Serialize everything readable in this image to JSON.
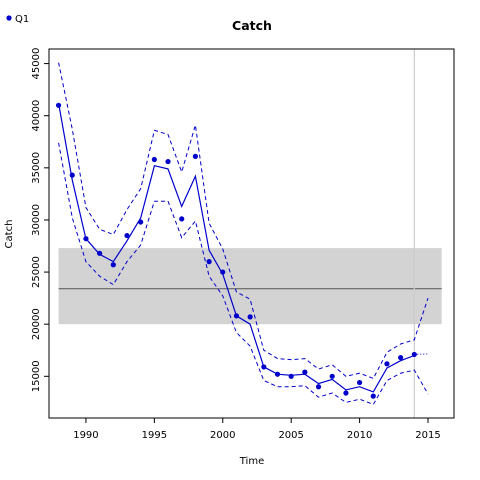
{
  "chart_data": {
    "type": "line",
    "title": "Catch",
    "xlabel": "Time",
    "ylabel": "Catch",
    "xlim": [
      1987.3,
      2016.9
    ],
    "ylim": [
      11000,
      46400
    ],
    "x_ticks": [
      1990,
      1995,
      2000,
      2005,
      2010,
      2015
    ],
    "y_ticks": [
      15000,
      20000,
      25000,
      30000,
      35000,
      40000,
      45000
    ],
    "legend": {
      "placement": "top-left",
      "label": "Q1",
      "color": "#0000cc"
    },
    "grid": false,
    "band": {
      "x": [
        1988,
        2016
      ],
      "lower": 20000,
      "upper": 27300,
      "mean": 23400,
      "color": "#d3d3d3",
      "line_color": "#555555"
    },
    "vline": {
      "x": 2014,
      "color": "#cccccc"
    },
    "observed": {
      "name": "Q1",
      "color": "#0000cc",
      "x": [
        1988,
        1989,
        1990,
        1991,
        1992,
        1993,
        1994,
        1995,
        1996,
        1997,
        1998,
        1999,
        2000,
        2001,
        2002,
        2003,
        2004,
        2005,
        2006,
        2007,
        2008,
        2009,
        2010,
        2011,
        2012,
        2013,
        2014
      ],
      "y": [
        41000,
        34300,
        28200,
        26800,
        25700,
        28500,
        29800,
        35800,
        35600,
        30100,
        36100,
        26000,
        25000,
        20800,
        20700,
        15900,
        15200,
        15000,
        15400,
        14000,
        15000,
        13400,
        14400,
        13100,
        16200,
        16800,
        17100
      ]
    },
    "fit": {
      "color": "#0000cc",
      "x": [
        1988,
        1989,
        1990,
        1991,
        1992,
        1993,
        1994,
        1995,
        1996,
        1997,
        1998,
        1999,
        2000,
        2001,
        2002,
        2003,
        2004,
        2005,
        2006,
        2007,
        2008,
        2009,
        2010,
        2011,
        2012,
        2013,
        2014
      ],
      "y": [
        41200,
        33800,
        28200,
        26700,
        26000,
        28000,
        30200,
        35200,
        34900,
        31300,
        34200,
        27100,
        24800,
        20800,
        20000,
        15900,
        15200,
        15100,
        15200,
        14300,
        14700,
        13700,
        14000,
        13500,
        15800,
        16500,
        17000
      ]
    },
    "upper_ci": {
      "x": [
        1988,
        1989,
        1990,
        1991,
        1992,
        1993,
        1994,
        1995,
        1996,
        1997,
        1998,
        1999,
        2000,
        2001,
        2002,
        2003,
        2004,
        2005,
        2006,
        2007,
        2008,
        2009,
        2010,
        2011,
        2012,
        2013,
        2014,
        2015
      ],
      "y": [
        45100,
        38700,
        31200,
        29100,
        28600,
        31000,
        33000,
        38600,
        38200,
        34600,
        39100,
        29700,
        27200,
        23100,
        22400,
        17500,
        16700,
        16600,
        16700,
        15700,
        16100,
        15000,
        15300,
        14800,
        17300,
        18100,
        18500,
        22500
      ]
    },
    "lower_ci": {
      "x": [
        1988,
        1989,
        1990,
        1991,
        1992,
        1993,
        1994,
        1995,
        1996,
        1997,
        1998,
        1999,
        2000,
        2001,
        2002,
        2003,
        2004,
        2005,
        2006,
        2007,
        2008,
        2009,
        2010,
        2011,
        2012,
        2013,
        2014,
        2015
      ],
      "y": [
        37400,
        30200,
        26000,
        24600,
        23800,
        26000,
        27600,
        31800,
        31800,
        28300,
        29900,
        24600,
        22700,
        19200,
        17900,
        14600,
        14000,
        14000,
        14100,
        13000,
        13400,
        12500,
        12800,
        12300,
        14600,
        15300,
        15600,
        13300
      ]
    },
    "projection": {
      "x": [
        2014,
        2015
      ],
      "y": [
        17100,
        17150
      ]
    }
  }
}
